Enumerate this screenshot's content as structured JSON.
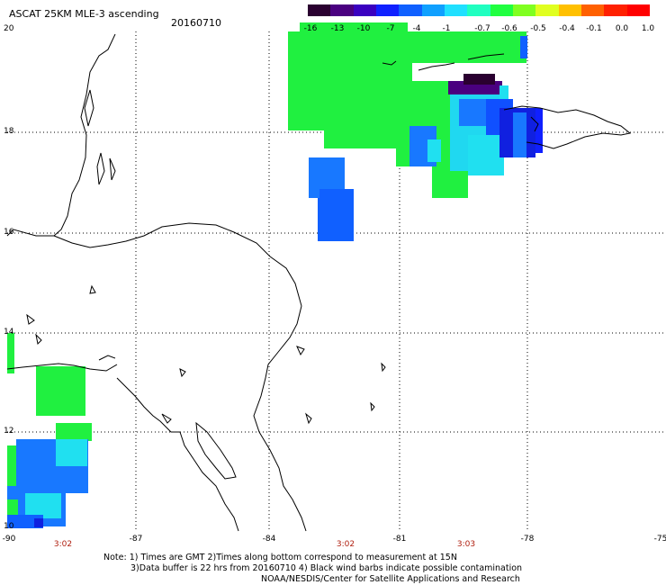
{
  "header": {
    "title": "ASCAT 25KM MLE-3 ascending",
    "date": "20160710"
  },
  "scale": {
    "labels": [
      "-16",
      "-13",
      "-10",
      "-7",
      "-4",
      "-1",
      "-0.7",
      "-0.6",
      "-0.5",
      "-0.4",
      "-0.1",
      "0.0",
      "1.0"
    ],
    "colors": [
      "#2a0030",
      "#4a0080",
      "#3a00c0",
      "#1020ff",
      "#1060ff",
      "#10a0ff",
      "#20e0ff",
      "#20ffc0",
      "#20ff40",
      "#80ff20",
      "#e0ff20",
      "#ffc000",
      "#ff6000",
      "#ff2000",
      "#ff0000"
    ]
  },
  "axes": {
    "lat_labels": [
      "20",
      "18",
      "16",
      "14",
      "12",
      "10"
    ],
    "lon_labels": [
      "-90",
      "-87",
      "-84",
      "-81",
      "-78",
      "-75"
    ],
    "times": [
      "3:02",
      "3:02",
      "3:03"
    ]
  },
  "footer": {
    "line1": "Note: 1) Times are GMT 2)Times along bottom correspond to measurement at 15N",
    "line2": "3)Data buffer is 22 hrs from 20160710 4) Black wind barbs indicate possible contamination",
    "line3": "NOAA/NESDIS/Center for Satellite Applications and Research"
  },
  "colors": {
    "green": "#20f040",
    "blue": "#1878ff",
    "cyan": "#20e0f0",
    "darkblue": "#1020e0",
    "purple": "#3a1070"
  }
}
